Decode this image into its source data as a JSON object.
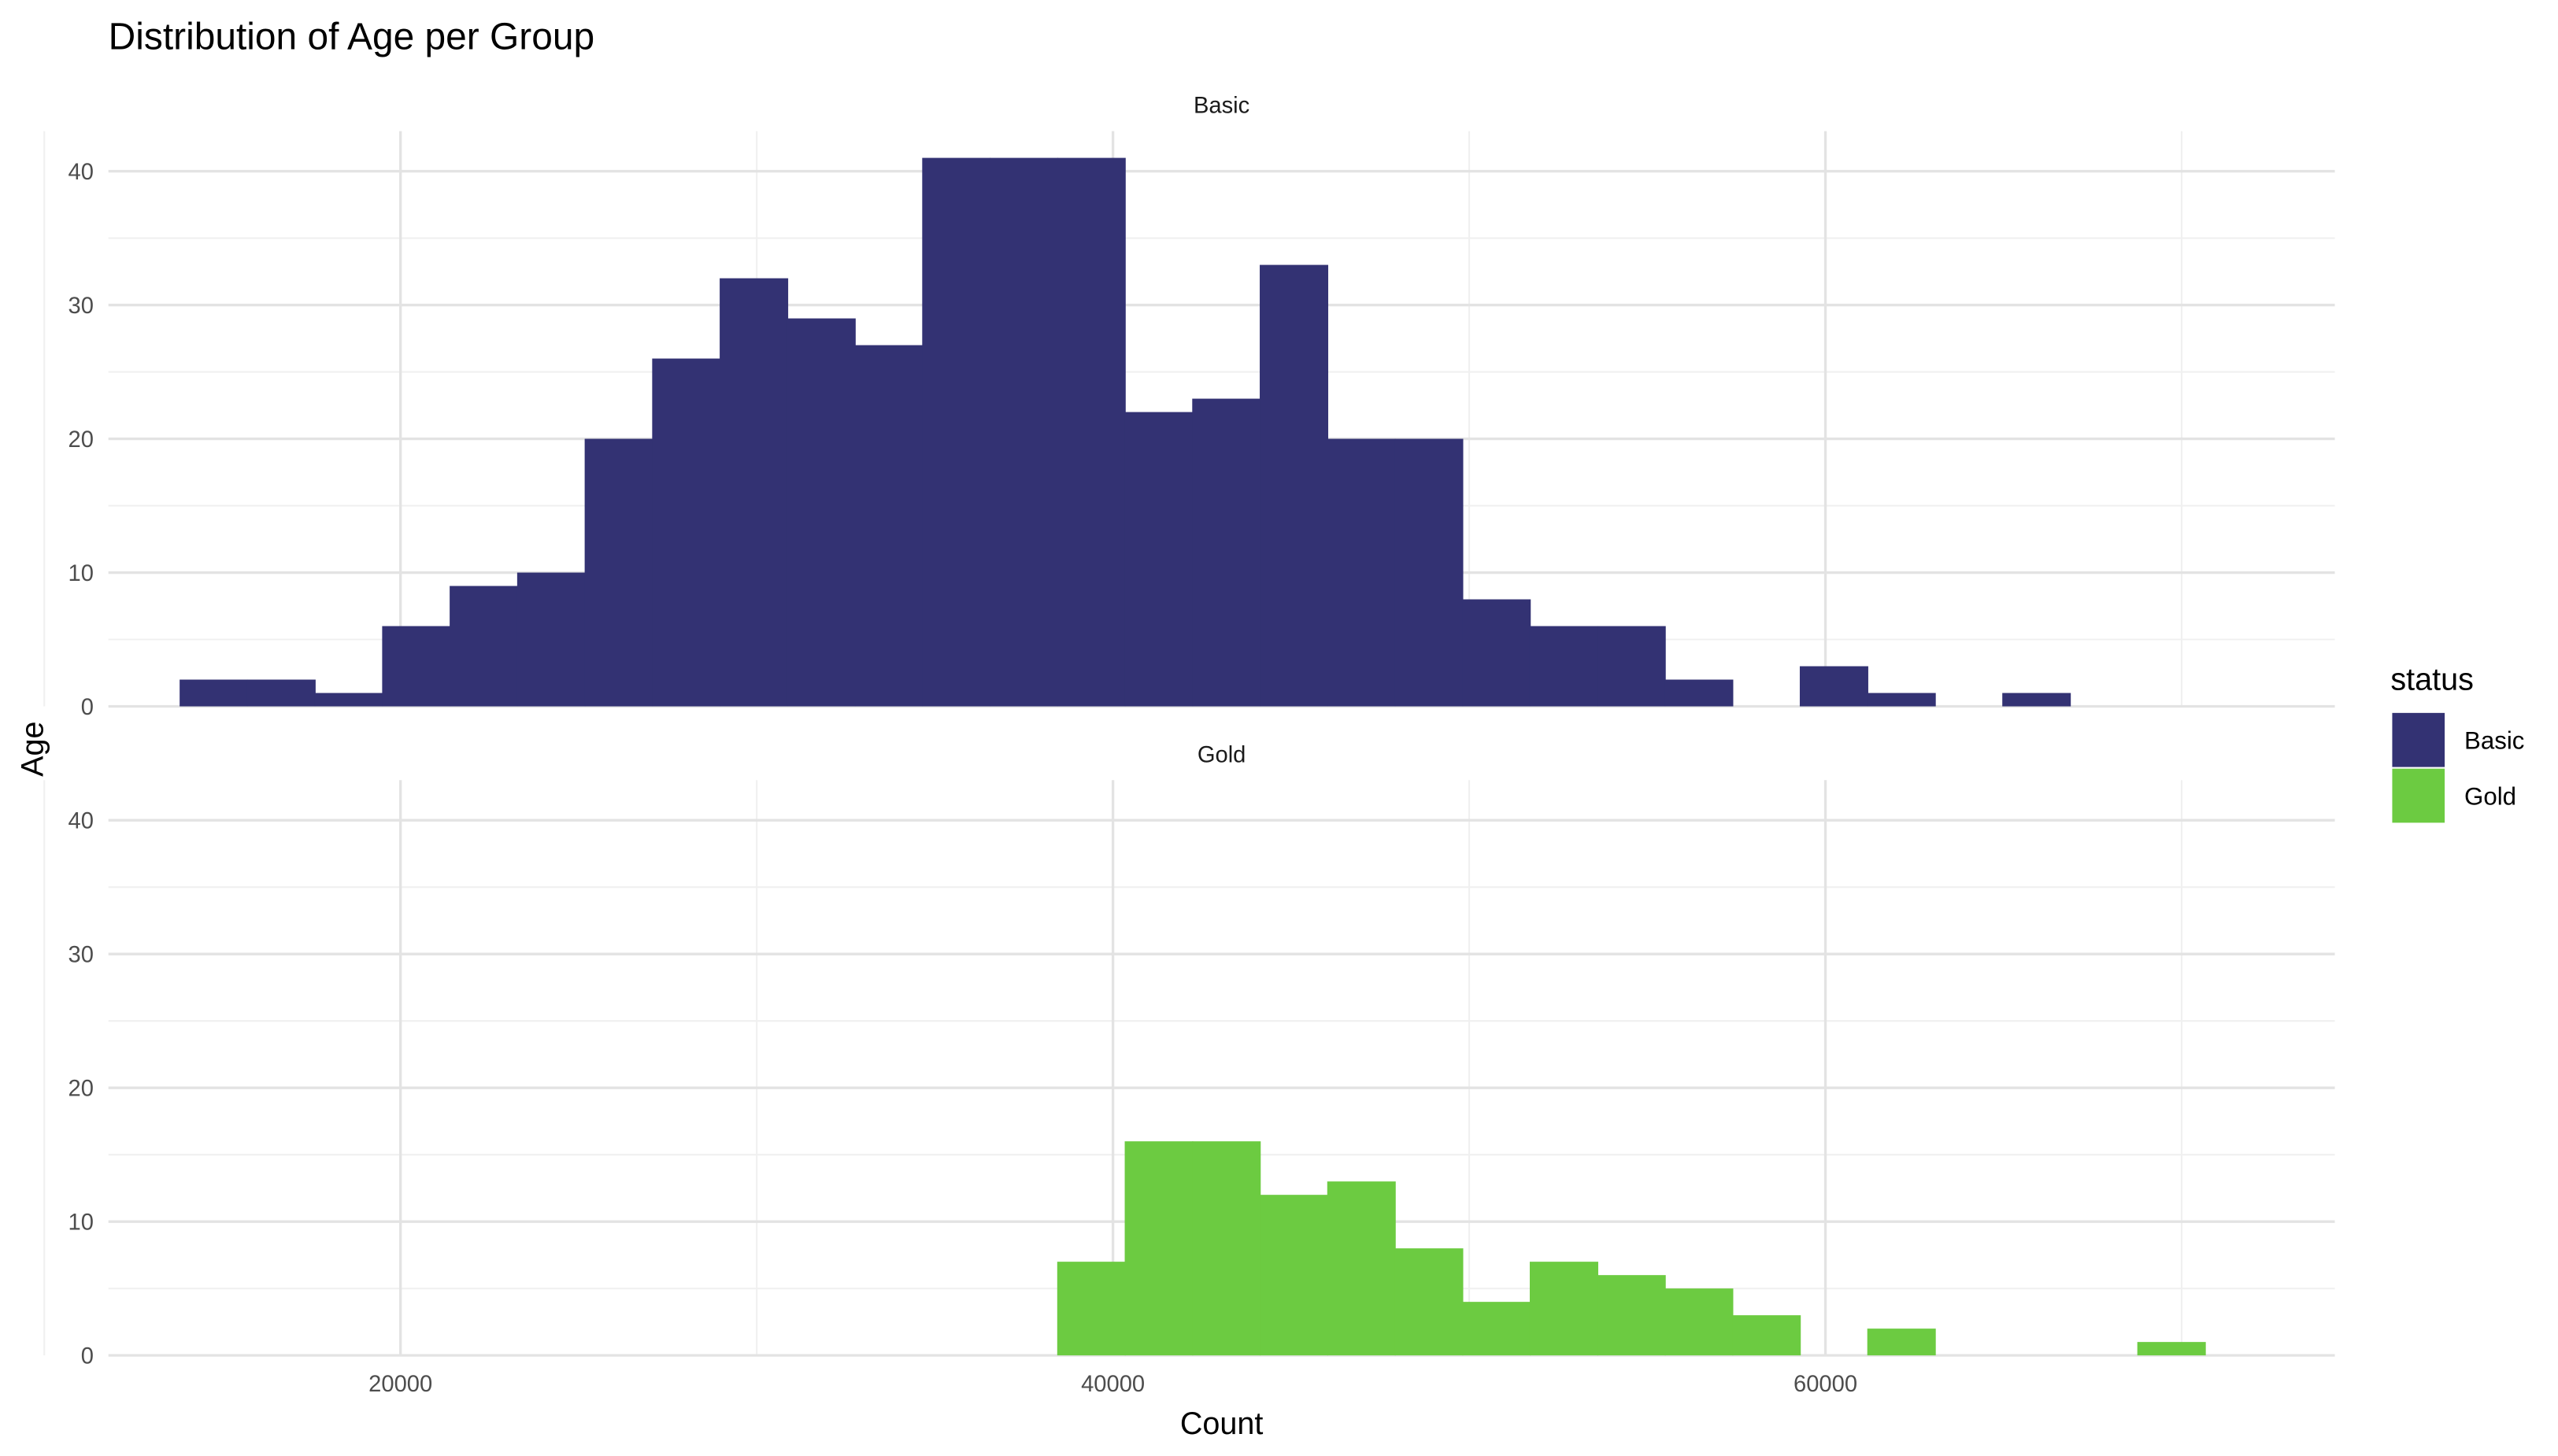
{
  "chart_data": {
    "type": "bar",
    "title": "Distribution of Age per Group",
    "xlabel": "Count",
    "ylabel": "Age",
    "xlim": [
      11800,
      74300
    ],
    "ylim": [
      0,
      43
    ],
    "x_ticks": [
      20000,
      40000,
      60000
    ],
    "y_ticks": [
      0,
      10,
      20,
      30,
      40
    ],
    "grid": true,
    "legend": {
      "title": "status",
      "position": "right"
    },
    "bin_width": 1895,
    "bin_start": 13800,
    "series": [
      {
        "name": "Basic",
        "color": "#333273",
        "values": [
          2,
          2,
          1,
          6,
          9,
          10,
          20,
          26,
          32,
          29,
          27,
          41,
          41,
          41,
          22,
          23,
          33,
          20,
          20,
          8,
          6,
          6,
          2,
          0,
          3,
          1,
          0,
          1,
          0,
          0,
          0
        ]
      },
      {
        "name": "Gold",
        "color": "#6CCB41",
        "values": [
          0,
          0,
          0,
          0,
          0,
          0,
          0,
          0,
          0,
          0,
          0,
          0,
          0,
          7,
          16,
          16,
          12,
          13,
          8,
          4,
          7,
          6,
          5,
          3,
          0,
          2,
          0,
          0,
          0,
          1
        ]
      }
    ]
  }
}
